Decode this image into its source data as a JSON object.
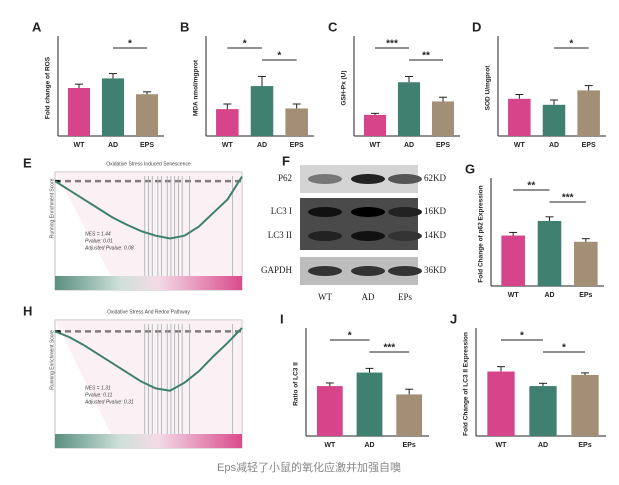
{
  "chart_data": [
    {
      "type": "bar",
      "label": "A",
      "ylabel": "Fold change of ROS",
      "categories": [
        "WT",
        "AD",
        "EPS"
      ],
      "values": [
        1.0,
        1.2,
        0.87
      ],
      "errors": [
        0.08,
        0.1,
        0.05
      ],
      "colors": [
        "#d6448a",
        "#3f8070",
        "#a38f75"
      ],
      "ylim": [
        0,
        2
      ],
      "brackets": [
        {
          "between": [
            "AD",
            "EPS"
          ],
          "label": "*"
        }
      ]
    },
    {
      "type": "bar",
      "label": "B",
      "ylabel": "MDA nmol/mgprot",
      "categories": [
        "WT",
        "AD",
        "EPS"
      ],
      "values": [
        4.2,
        7.8,
        4.3
      ],
      "errors": [
        0.8,
        1.5,
        0.7
      ],
      "colors": [
        "#d6448a",
        "#3f8070",
        "#a38f75"
      ],
      "ylim": [
        0,
        15
      ],
      "brackets": [
        {
          "between": [
            "WT",
            "AD"
          ],
          "label": "*"
        },
        {
          "between": [
            "AD",
            "EPS"
          ],
          "label": "*"
        }
      ]
    },
    {
      "type": "bar",
      "label": "C",
      "ylabel": "GSH-Px (U)",
      "categories": [
        "WT",
        "AD",
        "EPS"
      ],
      "values": [
        110,
        280,
        180
      ],
      "errors": [
        8,
        30,
        22
      ],
      "colors": [
        "#d6448a",
        "#3f8070",
        "#a38f75"
      ],
      "ylim": [
        0,
        500
      ],
      "brackets": [
        {
          "between": [
            "WT",
            "AD"
          ],
          "label": "***"
        },
        {
          "between": [
            "AD",
            "EPS"
          ],
          "label": "**"
        }
      ]
    },
    {
      "type": "bar",
      "label": "D",
      "ylabel": "SOD U/mgprot",
      "categories": [
        "WT",
        "AD",
        "EPS"
      ],
      "values": [
        155,
        130,
        190
      ],
      "errors": [
        18,
        20,
        20
      ],
      "colors": [
        "#d6448a",
        "#3f8070",
        "#a38f75"
      ],
      "ylim": [
        0,
        400
      ],
      "brackets": [
        {
          "between": [
            "AD",
            "EPS"
          ],
          "label": "*"
        }
      ]
    },
    {
      "type": "gsea",
      "label": "E",
      "title": "Oxidative Stress Induced Senescence",
      "ylabel": "Running Enrichment Score",
      "stats": [
        "NES = 1.44",
        "Pvalue: 0.01",
        "Adjusted Pvalue: 0.08"
      ],
      "values": [
        0,
        -0.1,
        -0.2,
        -0.3,
        -0.4,
        -0.48,
        -0.55,
        -0.6,
        -0.63,
        -0.6,
        -0.5,
        -0.35,
        -0.2,
        0.05
      ],
      "ylim": [
        -0.7,
        0.1
      ]
    },
    {
      "type": "bar",
      "label": "G",
      "ylabel": "Fold Change of p62 Expression",
      "categories": [
        "WT",
        "AD",
        "EPs"
      ],
      "values": [
        0.97,
        1.25,
        0.85
      ],
      "errors": [
        0.06,
        0.08,
        0.06
      ],
      "colors": [
        "#d6448a",
        "#3f8070",
        "#a38f75"
      ],
      "ylim": [
        0,
        2
      ],
      "brackets": [
        {
          "between": [
            "WT",
            "AD"
          ],
          "label": "**"
        },
        {
          "between": [
            "AD",
            "EPs"
          ],
          "label": "***"
        }
      ]
    },
    {
      "type": "gsea",
      "label": "H",
      "title": "Oxidative Stress And Redox Pathway",
      "ylabel": "Running Enrichment Score",
      "stats": [
        "NES = 1.31",
        "Pvalue: 0.11",
        "Adjusted Pvalue: 0.31"
      ],
      "values": [
        0,
        -0.05,
        -0.12,
        -0.2,
        -0.28,
        -0.36,
        -0.44,
        -0.5,
        -0.52,
        -0.45,
        -0.35,
        -0.22,
        -0.1,
        0.03
      ],
      "ylim": [
        -0.6,
        0.1
      ]
    },
    {
      "type": "bar",
      "label": "I",
      "ylabel": "Ratio of LC3 II",
      "categories": [
        "WT",
        "AD",
        "EPs"
      ],
      "values": [
        2.4,
        3.05,
        2.0
      ],
      "errors": [
        0.15,
        0.2,
        0.25
      ],
      "colors": [
        "#d6448a",
        "#3f8070",
        "#a38f75"
      ],
      "ylim": [
        0,
        5
      ],
      "brackets": [
        {
          "between": [
            "WT",
            "AD"
          ],
          "label": "*"
        },
        {
          "between": [
            "AD",
            "EPs"
          ],
          "label": "***"
        }
      ]
    },
    {
      "type": "bar",
      "label": "J",
      "ylabel": "Fold Change of LC3 II Expression",
      "categories": [
        "WT",
        "AD",
        "EPs"
      ],
      "values": [
        0.93,
        0.72,
        0.88
      ],
      "errors": [
        0.07,
        0.04,
        0.03
      ],
      "colors": [
        "#d6448a",
        "#3f8070",
        "#a38f75"
      ],
      "ylim": [
        0,
        1.5
      ],
      "brackets": [
        {
          "between": [
            "WT",
            "AD"
          ],
          "label": "*"
        },
        {
          "between": [
            "AD",
            "EPs"
          ],
          "label": "*"
        }
      ]
    }
  ],
  "blot": {
    "label": "F",
    "bands": [
      "P62",
      "LC3 I",
      "LC3 II",
      "GAPDH"
    ],
    "sizes": [
      "62KD",
      "16KD",
      "14KD",
      "36KD"
    ],
    "lanes": [
      "WT",
      "AD",
      "EPs"
    ]
  },
  "caption": "Eps减轻了小鼠的氧化应激并加强自噢"
}
